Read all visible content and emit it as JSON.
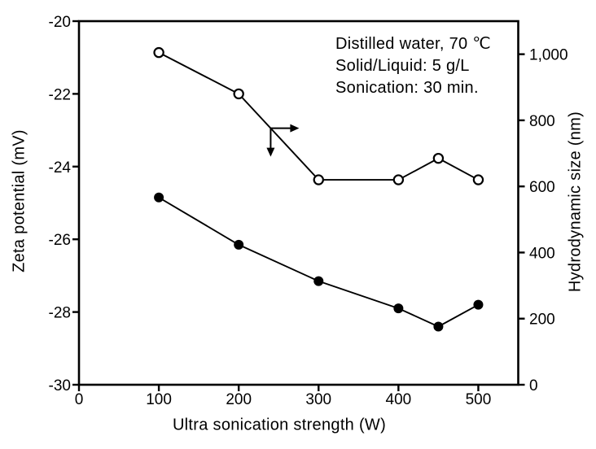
{
  "chart_data": {
    "type": "line",
    "title": "",
    "xlabel": "Ultra sonication strength (W)",
    "ylabel_left": "Zeta potential (mV)",
    "ylabel_right": "Hydrodynamic size (nm)",
    "xlim": [
      0,
      550
    ],
    "ylim_left": [
      -30,
      -20
    ],
    "ylim_right": [
      0,
      1100
    ],
    "grid": false,
    "legend_position": "none",
    "x_ticks": [
      0,
      100,
      200,
      300,
      400,
      500
    ],
    "y_ticks_left": [
      -20,
      -22,
      -24,
      -26,
      -28,
      -30
    ],
    "y_ticks_right": [
      {
        "value": 1000,
        "label": "1,000"
      },
      {
        "value": 800,
        "label": "800"
      },
      {
        "value": 600,
        "label": "600"
      },
      {
        "value": 400,
        "label": "400"
      },
      {
        "value": 200,
        "label": "200"
      },
      {
        "value": 0,
        "label": "0"
      }
    ],
    "x": [
      100,
      200,
      300,
      400,
      450,
      500
    ],
    "series": [
      {
        "name": "Hydrodynamic size",
        "axis": "right",
        "marker": "open-circle",
        "values": [
          1005,
          880,
          620,
          620,
          685,
          620
        ]
      },
      {
        "name": "Zeta potential",
        "axis": "left",
        "marker": "filled-circle",
        "values": [
          -24.85,
          -26.15,
          -27.15,
          -27.9,
          -28.4,
          -27.8
        ]
      }
    ],
    "axis_pointer": {
      "series": "Hydrodynamic size",
      "at_x": 240,
      "directions": [
        "right",
        "down"
      ]
    },
    "annotation": [
      "Distilled water, 70 ℃",
      "Solid/Liquid: 5 g/L",
      "Sonication: 30 min."
    ],
    "colors": {
      "line": "#000000",
      "text": "#000000",
      "background": "#ffffff"
    }
  }
}
